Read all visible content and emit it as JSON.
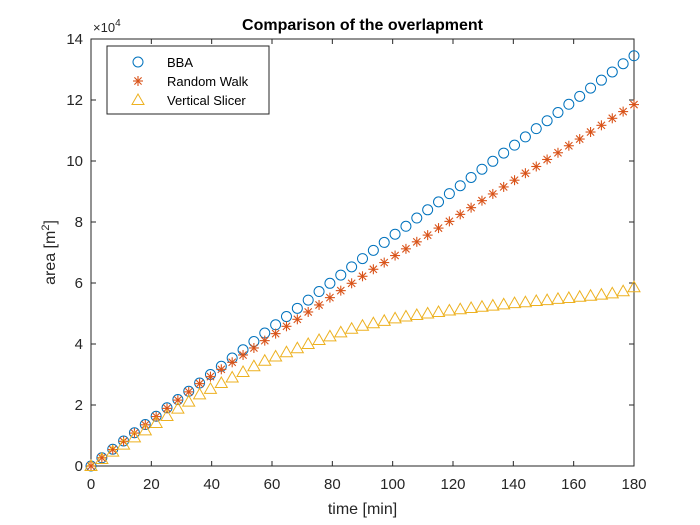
{
  "chart_data": {
    "type": "scatter",
    "title": "Comparison of the overlapment",
    "xlabel": "time [min]",
    "ylabel_base": "area [m",
    "ylabel_sup": "2",
    "ylabel_end": "]",
    "xlim": [
      0,
      180
    ],
    "ylim": [
      0,
      14
    ],
    "y_multiplier": "×10",
    "y_multiplier_exp": "4",
    "xticks": [
      0,
      20,
      40,
      60,
      80,
      100,
      120,
      140,
      160,
      180
    ],
    "yticks": [
      0,
      2,
      4,
      6,
      8,
      10,
      12,
      14
    ],
    "legend_position": "top-left",
    "x": [
      0,
      3.6,
      7.2,
      10.8,
      14.4,
      18,
      21.6,
      25.2,
      28.8,
      32.4,
      36,
      39.6,
      43.2,
      46.8,
      50.4,
      54,
      57.6,
      61.2,
      64.8,
      68.4,
      72,
      75.6,
      79.2,
      82.8,
      86.4,
      90,
      93.6,
      97.2,
      100.8,
      104.4,
      108,
      111.6,
      115.2,
      118.8,
      122.4,
      126,
      129.6,
      133.2,
      136.8,
      140.4,
      144,
      147.6,
      151.2,
      154.8,
      158.4,
      162,
      165.6,
      169.2,
      172.8,
      176.4,
      180
    ],
    "series": [
      {
        "name": "BBA",
        "marker": "circle",
        "color": "#0072BD",
        "values": [
          0,
          0.27,
          0.55,
          0.82,
          1.09,
          1.36,
          1.63,
          1.91,
          2.18,
          2.45,
          2.72,
          3.0,
          3.27,
          3.54,
          3.81,
          4.08,
          4.36,
          4.63,
          4.9,
          5.17,
          5.44,
          5.72,
          5.99,
          6.26,
          6.53,
          6.8,
          7.07,
          7.33,
          7.6,
          7.86,
          8.13,
          8.4,
          8.66,
          8.93,
          9.19,
          9.46,
          9.73,
          9.99,
          10.26,
          10.52,
          10.79,
          11.06,
          11.32,
          11.59,
          11.86,
          12.12,
          12.39,
          12.65,
          12.92,
          13.19,
          13.45
        ]
      },
      {
        "name": "Random Walk",
        "marker": "asterisk",
        "color": "#D95319",
        "values": [
          0,
          0.27,
          0.54,
          0.81,
          1.08,
          1.35,
          1.62,
          1.89,
          2.16,
          2.43,
          2.7,
          2.93,
          3.17,
          3.4,
          3.64,
          3.87,
          4.11,
          4.34,
          4.58,
          4.81,
          5.05,
          5.28,
          5.52,
          5.75,
          5.99,
          6.22,
          6.45,
          6.67,
          6.9,
          7.12,
          7.35,
          7.57,
          7.8,
          8.02,
          8.25,
          8.47,
          8.7,
          8.92,
          9.15,
          9.37,
          9.6,
          9.82,
          10.05,
          10.27,
          10.5,
          10.72,
          10.95,
          11.17,
          11.4,
          11.62,
          11.85
        ]
      },
      {
        "name": "Vertical Slicer",
        "marker": "triangle",
        "color": "#EDB120",
        "values": [
          0,
          0.23,
          0.47,
          0.7,
          0.94,
          1.17,
          1.41,
          1.64,
          1.88,
          2.11,
          2.35,
          2.53,
          2.72,
          2.9,
          3.08,
          3.27,
          3.45,
          3.59,
          3.73,
          3.86,
          4.0,
          4.13,
          4.25,
          4.38,
          4.5,
          4.6,
          4.68,
          4.76,
          4.84,
          4.9,
          4.95,
          5.0,
          5.05,
          5.1,
          5.14,
          5.18,
          5.22,
          5.26,
          5.3,
          5.34,
          5.37,
          5.41,
          5.44,
          5.48,
          5.51,
          5.55,
          5.58,
          5.62,
          5.66,
          5.73,
          5.86
        ]
      }
    ]
  }
}
